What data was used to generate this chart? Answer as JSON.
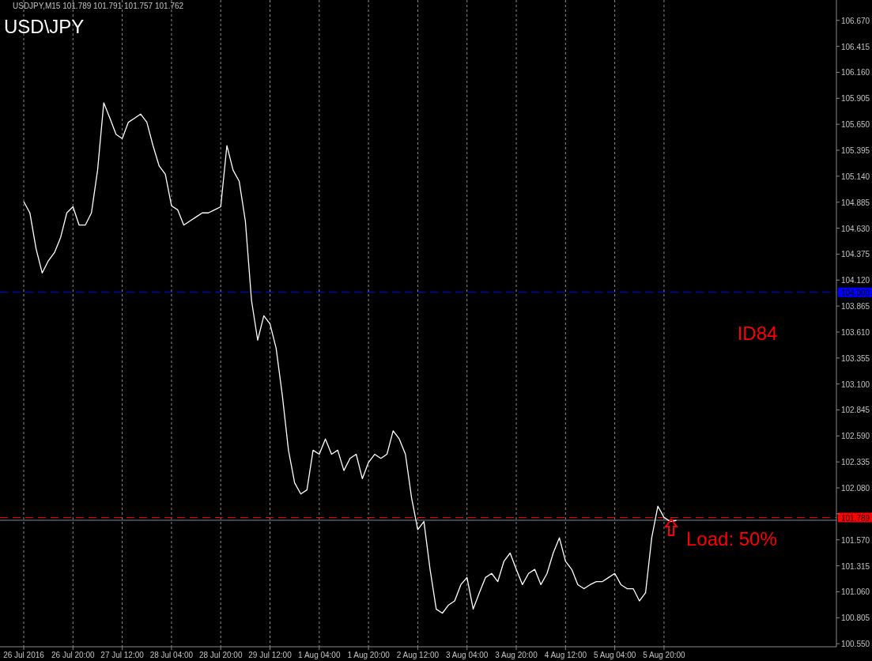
{
  "chart_data": {
    "type": "line",
    "title": "USD\\JPY",
    "categories": [
      "26 Jul 2016",
      null,
      null,
      null,
      null,
      null,
      null,
      null,
      "26 Jul 20:00",
      null,
      null,
      null,
      null,
      null,
      null,
      null,
      "27 Jul 12:00",
      null,
      null,
      null,
      null,
      null,
      null,
      null,
      "28 Jul 04:00",
      null,
      null,
      null,
      null,
      null,
      null,
      null,
      "28 Jul 20:00",
      null,
      null,
      null,
      null,
      null,
      null,
      null,
      "29 Jul 12:00",
      null,
      null,
      null,
      null,
      null,
      null,
      null,
      "1 Aug 04:00",
      null,
      null,
      null,
      null,
      null,
      null,
      null,
      "1 Aug 20:00",
      null,
      null,
      null,
      null,
      null,
      null,
      null,
      "2 Aug 12:00",
      null,
      null,
      null,
      null,
      null,
      null,
      null,
      "3 Aug 04:00",
      null,
      null,
      null,
      null,
      null,
      null,
      null,
      "3 Aug 20:00",
      null,
      null,
      null,
      null,
      null,
      null,
      null,
      "4 Aug 12:00",
      null,
      null,
      null,
      null,
      null,
      null,
      null,
      "5 Aug 04:00",
      null,
      null,
      null,
      null,
      null,
      null,
      null,
      "5 Aug 20:00",
      null,
      null,
      null,
      null,
      null,
      null,
      null,
      null,
      null,
      null,
      null,
      null,
      null,
      null,
      null,
      null,
      null,
      null,
      null,
      null,
      null,
      null,
      null,
      null,
      null,
      null,
      null,
      null
    ],
    "series": [
      {
        "color": "#ffffff",
        "values": [
          104.89,
          104.78,
          104.43,
          104.19,
          104.31,
          104.39,
          104.54,
          104.78,
          104.84,
          104.66,
          104.66,
          104.78,
          105.2,
          105.86,
          105.71,
          105.55,
          105.51,
          105.67,
          105.71,
          105.75,
          105.67,
          105.44,
          105.24,
          105.16,
          104.85,
          104.81,
          104.66,
          104.7,
          104.74,
          104.78,
          104.78,
          104.81,
          104.84,
          105.44,
          105.2,
          105.09,
          104.7,
          103.92,
          103.53,
          103.77,
          103.69,
          103.45,
          102.99,
          102.45,
          102.13,
          102.02,
          102.06,
          102.45,
          102.41,
          102.56,
          102.41,
          102.45,
          102.25,
          102.37,
          102.41,
          102.17,
          102.33,
          102.41,
          102.37,
          102.41,
          102.64,
          102.56,
          102.41,
          101.98,
          101.67,
          101.75,
          101.28,
          100.89,
          100.85,
          100.93,
          100.97,
          101.13,
          101.2,
          100.89,
          101.05,
          101.2,
          101.24,
          101.16,
          101.36,
          101.44,
          101.28,
          101.13,
          101.24,
          101.28,
          101.13,
          101.24,
          101.44,
          101.59,
          101.36,
          101.28,
          101.13,
          101.09,
          101.13,
          101.16,
          101.16,
          101.2,
          101.24,
          101.13,
          101.09,
          101.09,
          100.97,
          101.05,
          101.59,
          101.9,
          101.79,
          101.75,
          101.76,
          null,
          null,
          null,
          null,
          null,
          null,
          null,
          null,
          null,
          null,
          null,
          null,
          null,
          null,
          null,
          null,
          null,
          null,
          null,
          null,
          null,
          null,
          null,
          null,
          null,
          null
        ]
      }
    ],
    "ylim": [
      100.52,
      106.87
    ],
    "yticks": [
      {
        "value": 100.55,
        "label": "100.550"
      },
      100.805,
      {
        "value": 101.06,
        "label": "101.060"
      },
      101.315,
      {
        "value": 101.57,
        "label": "101.570"
      },
      {
        "value": 101.825,
        "label": null
      },
      {
        "value": 102.08,
        "label": "102.080"
      },
      102.335,
      {
        "value": 102.59,
        "label": "102.590"
      },
      102.845,
      {
        "value": 103.1,
        "label": "103.100"
      },
      103.355,
      {
        "value": 103.61,
        "label": "103.610"
      },
      103.865,
      {
        "value": 104.12,
        "label": "104.120"
      },
      104.375,
      {
        "value": 104.63,
        "label": "104.630"
      },
      104.885,
      {
        "value": 105.14,
        "label": "105.140"
      },
      105.395,
      {
        "value": 105.65,
        "label": "105.650"
      },
      105.905,
      {
        "value": 106.16,
        "label": "106.160"
      },
      106.415,
      {
        "value": 106.67,
        "label": "106.670"
      }
    ],
    "grid": "x",
    "ref_lines": [
      {
        "axis": "y",
        "value": 104.0,
        "label": "104.000",
        "color": "#0000ff",
        "line_style": "dashed"
      },
      {
        "axis": "y",
        "value": 101.789,
        "label": "101.789",
        "color": "#ff0000",
        "line_style": "dashed"
      },
      {
        "axis": "y",
        "value": 101.762,
        "label": null,
        "color": "#778899",
        "line_style": "solid"
      }
    ],
    "annotations": [
      "USDJPY,M15  101.789 101.791 101.757 101.762",
      "ID84",
      "Load: 50%"
    ]
  }
}
